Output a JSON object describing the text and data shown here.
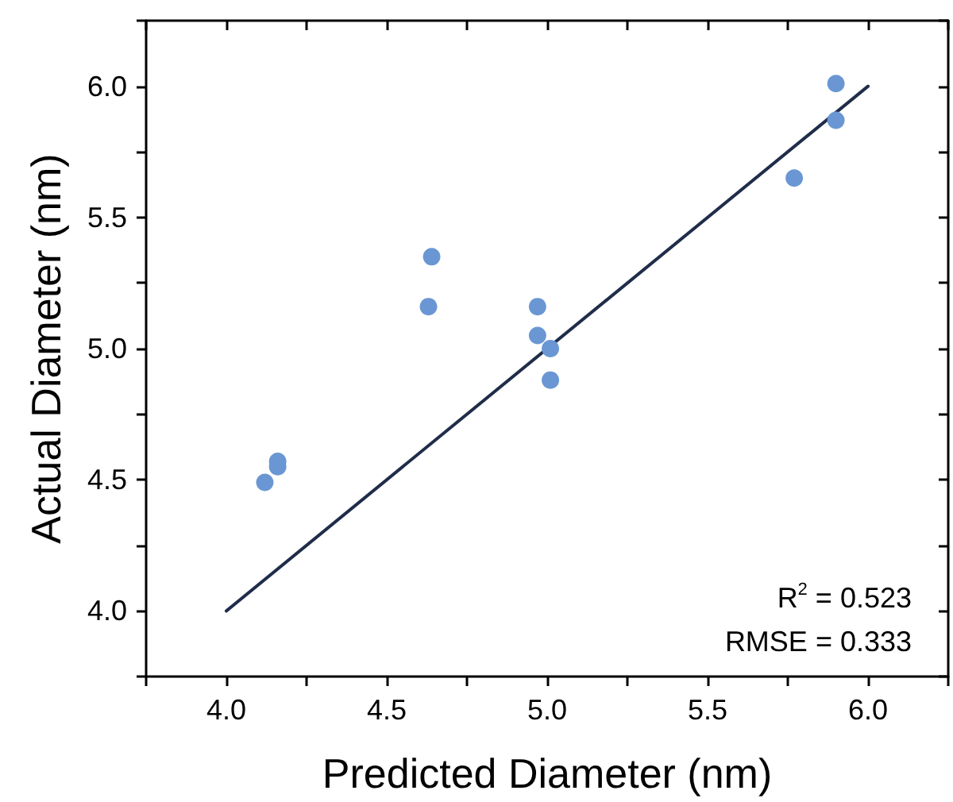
{
  "chart_data": {
    "type": "scatter",
    "xlabel": "Predicted Diameter (nm)",
    "ylabel": "Actual Diameter (nm)",
    "series": [
      {
        "color": "#6a97d3",
        "marker": "circle",
        "x": [
          5.9,
          5.9,
          5.77,
          4.64,
          4.63,
          4.97,
          4.97,
          5.01,
          5.01,
          4.16,
          4.16,
          4.12
        ],
        "values": [
          6.01,
          5.87,
          5.65,
          5.35,
          5.16,
          5.16,
          5.05,
          5.0,
          4.88,
          4.57,
          4.55,
          4.49
        ]
      },
      {
        "type": "line",
        "color": "#1f2d4a",
        "marker": "none",
        "line_style": "solid",
        "x": [
          4.0,
          6.0
        ],
        "values": [
          4.0,
          6.0
        ]
      }
    ],
    "xlim": [
      3.75,
      6.25
    ],
    "ylim": [
      3.75,
      6.25
    ],
    "xticks": [
      {
        "value": 3.75,
        "label": null
      },
      {
        "value": 4,
        "label": "4.0"
      },
      {
        "value": 4.25,
        "label": null
      },
      4.5,
      {
        "value": 4.75,
        "label": null
      },
      {
        "value": 5,
        "label": "5.0"
      },
      {
        "value": 5.25,
        "label": null
      },
      5.5,
      {
        "value": 5.75,
        "label": null
      },
      {
        "value": 6,
        "label": "6.0"
      },
      {
        "value": 6.25,
        "label": null
      }
    ],
    "yticks": [
      {
        "value": 3.75,
        "label": null
      },
      {
        "value": 4,
        "label": "4.0"
      },
      {
        "value": 4.25,
        "label": null
      },
      4.5,
      {
        "value": 4.75,
        "label": null
      },
      {
        "value": 5,
        "label": "5.0"
      },
      {
        "value": 5.25,
        "label": null
      },
      5.5,
      {
        "value": 5.75,
        "label": null
      },
      {
        "value": 6,
        "label": "6.0"
      },
      {
        "value": 6.25,
        "label": null
      }
    ],
    "grid": false,
    "annotations": [
      "R$^{2}$ = 0.523",
      "RMSE = 0.333"
    ]
  }
}
